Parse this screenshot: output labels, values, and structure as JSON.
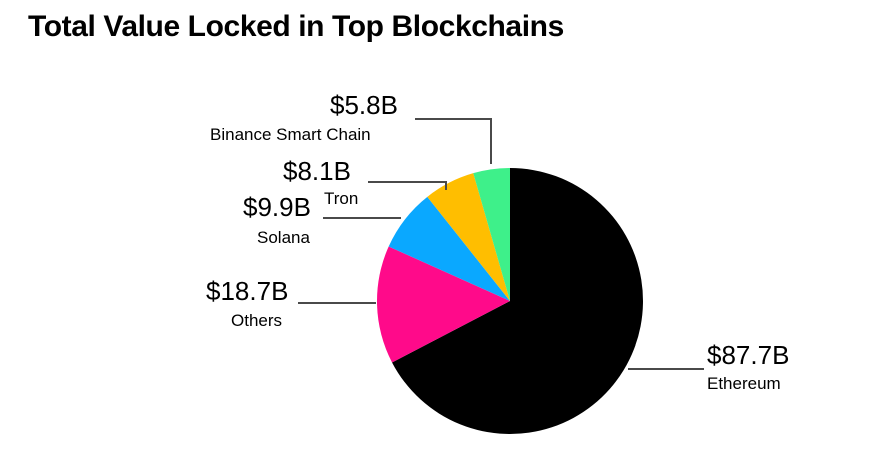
{
  "chart_data": {
    "type": "pie",
    "title": "Total Value Locked in Top Blockchains",
    "unit": "USD billions",
    "slices": [
      {
        "name": "Ethereum",
        "value": 87.7,
        "label": "$87.7B",
        "color": "#000000"
      },
      {
        "name": "Others",
        "value": 18.7,
        "label": "$18.7B",
        "color": "#ff0a8a"
      },
      {
        "name": "Solana",
        "value": 9.9,
        "label": "$9.9B",
        "color": "#0aa8ff"
      },
      {
        "name": "Tron",
        "value": 8.1,
        "label": "$8.1B",
        "color": "#ffbe00"
      },
      {
        "name": "Binance Smart Chain",
        "value": 5.8,
        "label": "$5.8B",
        "color": "#3ef08a"
      }
    ]
  }
}
